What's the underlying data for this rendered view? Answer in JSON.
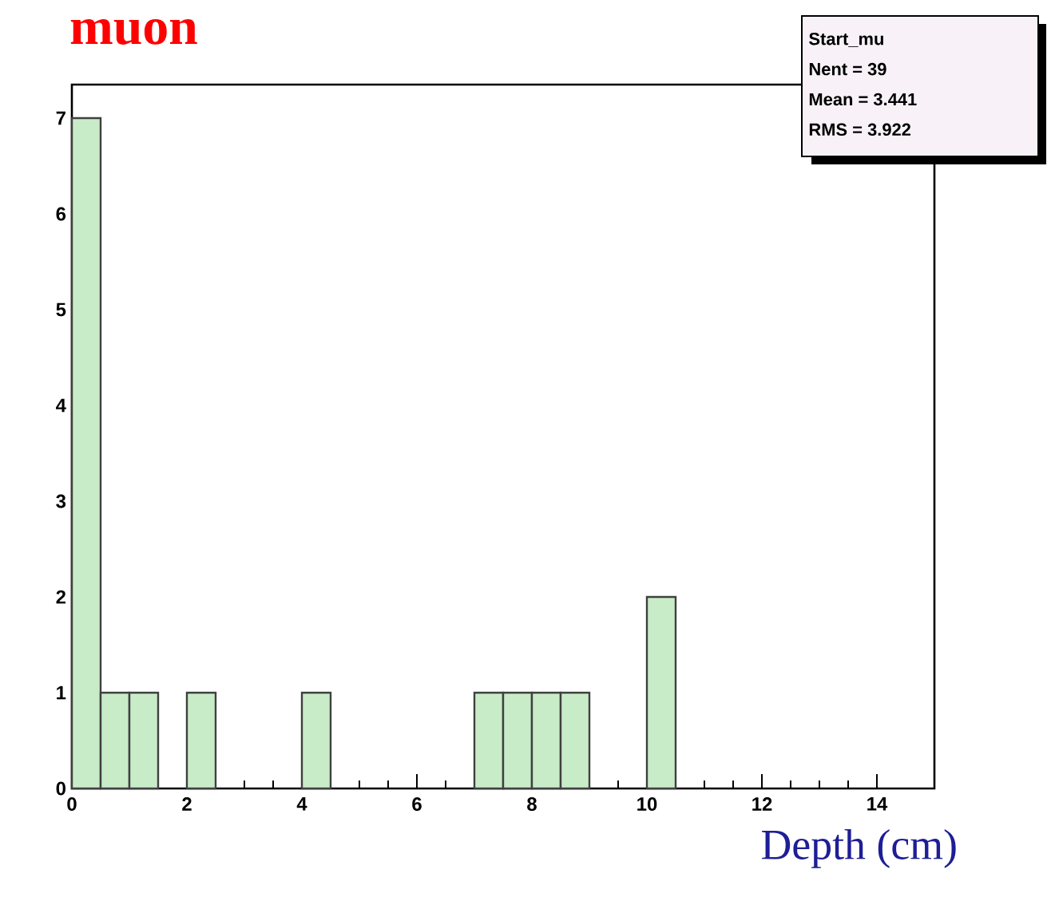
{
  "chart_data": {
    "type": "histogram",
    "title": "muon",
    "xlabel": "Depth (cm)",
    "bins": [
      0,
      0.5,
      1,
      1.5,
      2,
      2.5,
      3,
      3.5,
      4,
      4.5,
      5,
      5.5,
      6,
      6.5,
      7,
      7.5,
      8,
      8.5,
      9,
      9.5,
      10,
      10.5,
      11,
      11.5,
      12,
      12.5,
      13,
      13.5,
      14,
      14.5,
      15
    ],
    "values": [
      7,
      1,
      1,
      0,
      1,
      0,
      0,
      0,
      1,
      0,
      0,
      0,
      0,
      0,
      1,
      1,
      1,
      1,
      0,
      0,
      2,
      0,
      0,
      0,
      0,
      0,
      0,
      0,
      0,
      0
    ],
    "color": "#c8ecc8",
    "xlim": [
      0,
      15
    ],
    "ylim": [
      0,
      7.35
    ],
    "xticks": [
      0,
      2,
      4,
      6,
      8,
      10,
      12,
      14
    ],
    "yticks": [
      0,
      1,
      2,
      3,
      4,
      5,
      6,
      7
    ],
    "grid": false,
    "annotations": [
      "Start_mu",
      "Nent  =  39",
      "Mean    =     3.441",
      "RMS     =     3.922"
    ]
  }
}
